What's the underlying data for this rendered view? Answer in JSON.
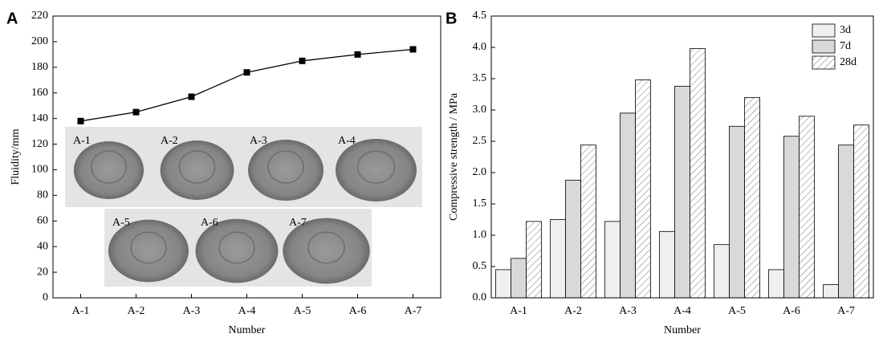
{
  "chart_data": [
    {
      "type": "line",
      "panel_label": "A",
      "x_label": "Number",
      "y_label": "Fluidity/mm",
      "categories": [
        "A-1",
        "A-2",
        "A-3",
        "A-4",
        "A-5",
        "A-6",
        "A-7"
      ],
      "values": [
        138,
        145,
        157,
        176,
        185,
        190,
        194
      ],
      "color": "#000000",
      "ylim": [
        0,
        220
      ],
      "yticks": [
        0,
        20,
        40,
        60,
        80,
        100,
        120,
        140,
        160,
        180,
        200,
        220
      ],
      "inset_labels": [
        "A-1",
        "A-2",
        "A-3",
        "A-4",
        "A-5",
        "A-6",
        "A-7"
      ]
    },
    {
      "type": "bar",
      "panel_label": "B",
      "x_label": "Number",
      "y_label": "Compressive strength / MPa",
      "categories": [
        "A-1",
        "A-2",
        "A-3",
        "A-4",
        "A-5",
        "A-6",
        "A-7"
      ],
      "series": [
        {
          "name": "3d",
          "color": "#efefef",
          "hatch": false,
          "values": [
            0.45,
            1.25,
            1.22,
            1.06,
            0.85,
            0.45,
            0.21
          ]
        },
        {
          "name": "7d",
          "color": "#d9d9d9",
          "hatch": false,
          "values": [
            0.63,
            1.88,
            2.95,
            3.38,
            2.74,
            2.58,
            2.44
          ]
        },
        {
          "name": "28d",
          "color": "#ffffff",
          "hatch": true,
          "values": [
            1.22,
            2.44,
            3.48,
            3.98,
            3.2,
            2.9,
            2.76
          ]
        }
      ],
      "ylim": [
        0,
        4.5
      ],
      "yticks": [
        {
          "value": 0,
          "label": "0.0"
        },
        0.5,
        {
          "value": 1,
          "label": "1.0"
        },
        1.5,
        {
          "value": 2,
          "label": "2.0"
        },
        2.5,
        {
          "value": 3,
          "label": "3.0"
        },
        3.5,
        {
          "value": 4,
          "label": "4.0"
        },
        4.5
      ],
      "legend": "upper-right"
    }
  ]
}
